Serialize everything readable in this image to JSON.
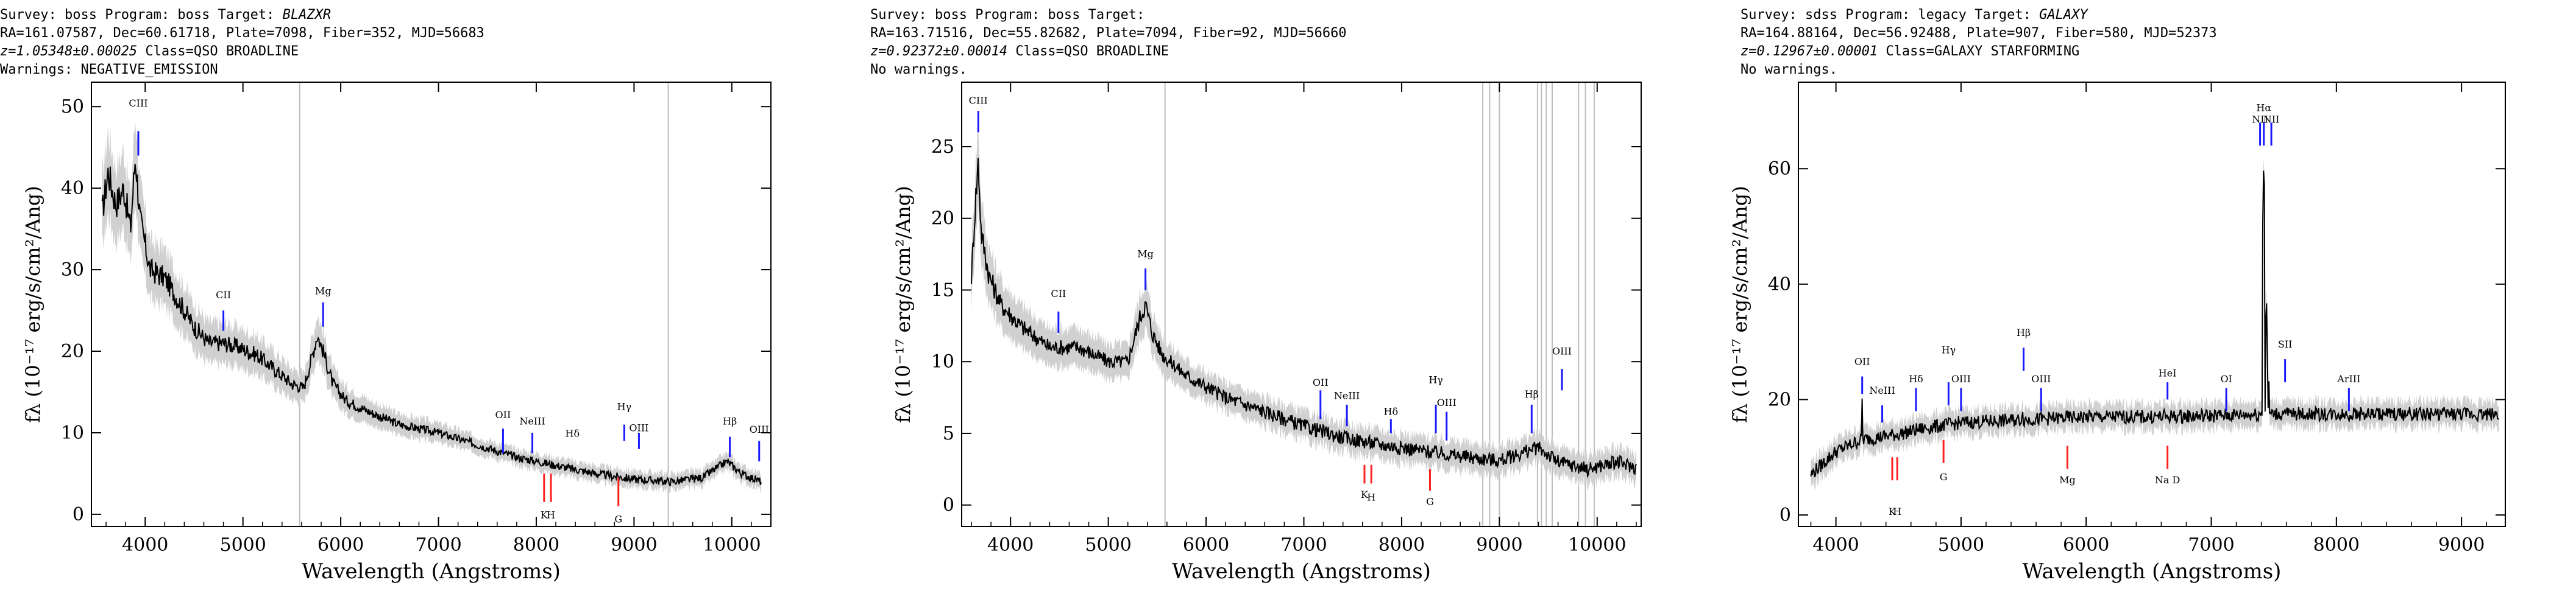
{
  "chart_data": [
    {
      "type": "line",
      "header": {
        "survey": "boss",
        "program": "boss",
        "target": "BLAZXR",
        "ra": "161.07587",
        "dec": "60.61718",
        "plate": "7098",
        "fiber": "352",
        "mjd": "56683",
        "z": "z=1.05348±0.00025",
        "class": "QSO BROADLINE",
        "warnings": "Warnings: NEGATIVE_EMISSION"
      },
      "xlabel": "Wavelength (Angstroms)",
      "ylabel": "fλ (10⁻¹⁷ erg/s/cm²/Ang)",
      "xlim": [
        3450,
        10400
      ],
      "ylim": [
        -1.5,
        53
      ],
      "xticks": [
        4000,
        5000,
        6000,
        7000,
        8000,
        9000,
        10000
      ],
      "yticks": [
        0,
        10,
        20,
        30,
        40,
        50
      ],
      "continuum": [
        [
          3560,
          37
        ],
        [
          3620,
          42
        ],
        [
          3700,
          38
        ],
        [
          3780,
          40
        ],
        [
          3850,
          35
        ],
        [
          3900,
          44
        ],
        [
          3950,
          36
        ],
        [
          4050,
          30
        ],
        [
          4200,
          29
        ],
        [
          4350,
          26
        ],
        [
          4500,
          23
        ],
        [
          4650,
          21
        ],
        [
          4800,
          21
        ],
        [
          4950,
          20.5
        ],
        [
          5150,
          19.5
        ],
        [
          5350,
          17.5
        ],
        [
          5500,
          16
        ],
        [
          5620,
          15.5
        ],
        [
          5700,
          19
        ],
        [
          5760,
          22
        ],
        [
          5820,
          20
        ],
        [
          5920,
          16
        ],
        [
          6050,
          14
        ],
        [
          6300,
          12.5
        ],
        [
          6600,
          11
        ],
        [
          7000,
          10
        ],
        [
          7400,
          8.5
        ],
        [
          7800,
          7
        ],
        [
          8200,
          6
        ],
        [
          8600,
          5
        ],
        [
          9000,
          4.3
        ],
        [
          9400,
          4
        ],
        [
          9700,
          4.5
        ],
        [
          9950,
          6.5
        ],
        [
          10100,
          5
        ],
        [
          10300,
          4
        ]
      ],
      "vlines": [
        5580,
        9350
      ],
      "emission_lines": [
        {
          "label": "CIII",
          "x": 3930,
          "y0": 44,
          "y1": 47,
          "ty": 50
        },
        {
          "label": "CII",
          "x": 4800,
          "y0": 22.5,
          "y1": 25,
          "ty": 26.5
        },
        {
          "label": "Mg",
          "x": 5820,
          "y0": 23,
          "y1": 26,
          "ty": 27
        },
        {
          "label": "OII",
          "x": 7660,
          "y0": 7.5,
          "y1": 10.5,
          "ty": 11.8
        },
        {
          "label": "NeIII",
          "x": 7960,
          "y0": 7.5,
          "y1": 10,
          "ty": 11
        },
        {
          "label": "Hδ",
          "x": 8370,
          "y0": 8,
          "y1": 8,
          "ty": 9.5
        },
        {
          "label": "Hγ",
          "x": 8900,
          "y0": 9,
          "y1": 11,
          "ty": 12.8
        },
        {
          "label": "OIII",
          "x": 9050,
          "y0": 8,
          "y1": 10,
          "ty": 10.2
        },
        {
          "label": "Hβ",
          "x": 9980,
          "y0": 7,
          "y1": 9.5,
          "ty": 11
        },
        {
          "label": "OIII",
          "x": 10280,
          "y0": 6.5,
          "y1": 9,
          "ty": 10
        }
      ],
      "absorption_lines": [
        {
          "label": "K",
          "x": 8080,
          "y0": 1.5,
          "y1": 5,
          "ty": -0.5
        },
        {
          "label": "H",
          "x": 8150,
          "y0": 1.5,
          "y1": 5,
          "ty": -0.5
        },
        {
          "label": "G",
          "x": 8840,
          "y0": 1,
          "y1": 4.5,
          "ty": -1
        }
      ]
    },
    {
      "type": "line",
      "header": {
        "survey": "boss",
        "program": "boss",
        "target": "",
        "ra": "163.71516",
        "dec": "55.82682",
        "plate": "7094",
        "fiber": "92",
        "mjd": "56660",
        "z": "z=0.92372±0.00014",
        "class": "QSO BROADLINE",
        "warnings": "No warnings."
      },
      "xlabel": "Wavelength (Angstroms)",
      "ylabel": "fλ (10⁻¹⁷ erg/s/cm²/Ang)",
      "xlim": [
        3500,
        10450
      ],
      "ylim": [
        -1.5,
        29.5
      ],
      "xticks": [
        4000,
        5000,
        6000,
        7000,
        8000,
        9000,
        10000
      ],
      "yticks": [
        0,
        5,
        10,
        15,
        20,
        25
      ],
      "continuum": [
        [
          3600,
          16
        ],
        [
          3640,
          21
        ],
        [
          3670,
          24
        ],
        [
          3700,
          19
        ],
        [
          3780,
          16
        ],
        [
          3900,
          14
        ],
        [
          4100,
          12.5
        ],
        [
          4400,
          11
        ],
        [
          4700,
          11
        ],
        [
          5000,
          10
        ],
        [
          5200,
          10
        ],
        [
          5320,
          13
        ],
        [
          5380,
          14
        ],
        [
          5450,
          12
        ],
        [
          5550,
          10.5
        ],
        [
          5800,
          9
        ],
        [
          6200,
          7.5
        ],
        [
          6600,
          6.5
        ],
        [
          7000,
          5.5
        ],
        [
          7400,
          4.7
        ],
        [
          7800,
          4.2
        ],
        [
          8200,
          3.8
        ],
        [
          8600,
          3.4
        ],
        [
          9000,
          3.1
        ],
        [
          9300,
          3.8
        ],
        [
          9400,
          4
        ],
        [
          9600,
          3
        ],
        [
          9900,
          2.5
        ],
        [
          10200,
          3
        ],
        [
          10400,
          2.6
        ]
      ],
      "vlines": [
        5580,
        8830,
        8900,
        9000,
        9390,
        9430,
        9480,
        9540,
        9810,
        9880,
        9970
      ],
      "emission_lines": [
        {
          "label": "CIII",
          "x": 3670,
          "y0": 26,
          "y1": 27.5,
          "ty": 28
        },
        {
          "label": "CII",
          "x": 4490,
          "y0": 12,
          "y1": 13.5,
          "ty": 14.5
        },
        {
          "label": "Mg",
          "x": 5380,
          "y0": 15,
          "y1": 16.5,
          "ty": 17.3
        },
        {
          "label": "OII",
          "x": 7170,
          "y0": 6,
          "y1": 8,
          "ty": 8.3
        },
        {
          "label": "NeIII",
          "x": 7440,
          "y0": 5.5,
          "y1": 7,
          "ty": 7.4
        },
        {
          "label": "Hδ",
          "x": 7890,
          "y0": 5,
          "y1": 6,
          "ty": 6.3
        },
        {
          "label": "Hγ",
          "x": 8350,
          "y0": 5,
          "y1": 7,
          "ty": 8.5
        },
        {
          "label": "OIII",
          "x": 8460,
          "y0": 4.5,
          "y1": 6.5,
          "ty": 6.9
        },
        {
          "label": "Hβ",
          "x": 9330,
          "y0": 5,
          "y1": 7,
          "ty": 7.5
        },
        {
          "label": "OIII",
          "x": 9640,
          "y0": 8,
          "y1": 9.5,
          "ty": 10.5
        }
      ],
      "absorption_lines": [
        {
          "label": "K",
          "x": 7620,
          "y0": 1.5,
          "y1": 2.8,
          "ty": 0.5
        },
        {
          "label": "H",
          "x": 7690,
          "y0": 1.5,
          "y1": 2.8,
          "ty": 0.3
        },
        {
          "label": "G",
          "x": 8290,
          "y0": 1,
          "y1": 2.5,
          "ty": 0
        }
      ]
    },
    {
      "type": "line",
      "header": {
        "survey": "sdss",
        "program": "legacy",
        "target": "GALAXY",
        "ra": "164.88164",
        "dec": "56.92488",
        "plate": "907",
        "fiber": "580",
        "mjd": "52373",
        "z": "z=0.12967±0.00001",
        "class": "GALAXY STARFORMING",
        "warnings": "No warnings."
      },
      "xlabel": "Wavelength (Angstroms)",
      "ylabel": "fλ (10⁻¹⁷ erg/s/cm²/Ang)",
      "xlim": [
        3700,
        9350
      ],
      "ylim": [
        -2,
        75
      ],
      "xticks": [
        4000,
        5000,
        6000,
        7000,
        8000,
        9000
      ],
      "yticks": [
        0,
        20,
        40,
        60
      ],
      "continuum": [
        [
          3800,
          7
        ],
        [
          3900,
          9
        ],
        [
          4000,
          11
        ],
        [
          4100,
          12
        ],
        [
          4200,
          13
        ],
        [
          4350,
          13.5
        ],
        [
          4500,
          14
        ],
        [
          4700,
          15
        ],
        [
          5000,
          16
        ],
        [
          5500,
          16.5
        ],
        [
          6000,
          17
        ],
        [
          6500,
          17
        ],
        [
          7000,
          17.2
        ],
        [
          7400,
          17.5
        ],
        [
          7800,
          17.5
        ],
        [
          8200,
          17.5
        ],
        [
          8600,
          17.5
        ],
        [
          9000,
          17.5
        ],
        [
          9300,
          17.5
        ]
      ],
      "spikes": [
        [
          4210,
          21
        ],
        [
          4480,
          10
        ],
        [
          4510,
          9
        ],
        [
          5430,
          19
        ],
        [
          5490,
          22
        ],
        [
          5660,
          18
        ],
        [
          6620,
          12
        ],
        [
          7420,
          63
        ],
        [
          7440,
          40
        ],
        [
          7460,
          24
        ],
        [
          7580,
          22
        ],
        [
          7640,
          21
        ],
        [
          8300,
          20
        ]
      ],
      "vlines": [],
      "emission_lines": [
        {
          "label": "OII",
          "x": 4210,
          "y0": 21,
          "y1": 24,
          "ty": 26
        },
        {
          "label": "NeIII",
          "x": 4370,
          "y0": 16,
          "y1": 19,
          "ty": 21
        },
        {
          "label": "Hδ",
          "x": 4640,
          "y0": 18,
          "y1": 22,
          "ty": 23
        },
        {
          "label": "Hγ",
          "x": 4900,
          "y0": 19,
          "y1": 23,
          "ty": 28
        },
        {
          "label": "OIII",
          "x": 5000,
          "y0": 18,
          "y1": 22,
          "ty": 23
        },
        {
          "label": "Hβ",
          "x": 5500,
          "y0": 25,
          "y1": 29,
          "ty": 31
        },
        {
          "label": "OIII",
          "x": 5640,
          "y0": 18,
          "y1": 22,
          "ty": 23
        },
        {
          "label": "HeI",
          "x": 6650,
          "y0": 20,
          "y1": 23,
          "ty": 24
        },
        {
          "label": "OI",
          "x": 7120,
          "y0": 18,
          "y1": 22,
          "ty": 23
        },
        {
          "label": "Hα",
          "x": 7420,
          "y0": 64,
          "y1": 68,
          "ty": 70
        },
        {
          "label": "NII",
          "x": 7390,
          "y0": 64,
          "y1": 68,
          "ty": 68
        },
        {
          "label": "NII",
          "x": 7480,
          "y0": 64,
          "y1": 68,
          "ty": 68
        },
        {
          "label": "SII",
          "x": 7590,
          "y0": 23,
          "y1": 27,
          "ty": 29
        },
        {
          "label": "ArIII",
          "x": 8100,
          "y0": 18,
          "y1": 22,
          "ty": 23
        }
      ],
      "absorption_lines": [
        {
          "label": "K",
          "x": 4450,
          "y0": 6,
          "y1": 10,
          "ty": 0
        },
        {
          "label": "H",
          "x": 4490,
          "y0": 6,
          "y1": 10,
          "ty": 0
        },
        {
          "label": "G",
          "x": 4860,
          "y0": 9,
          "y1": 13,
          "ty": 6
        },
        {
          "label": "Mg",
          "x": 5850,
          "y0": 8,
          "y1": 12,
          "ty": 5.5
        },
        {
          "label": "Na D",
          "x": 6650,
          "y0": 8,
          "y1": 12,
          "ty": 5.5
        }
      ]
    }
  ]
}
